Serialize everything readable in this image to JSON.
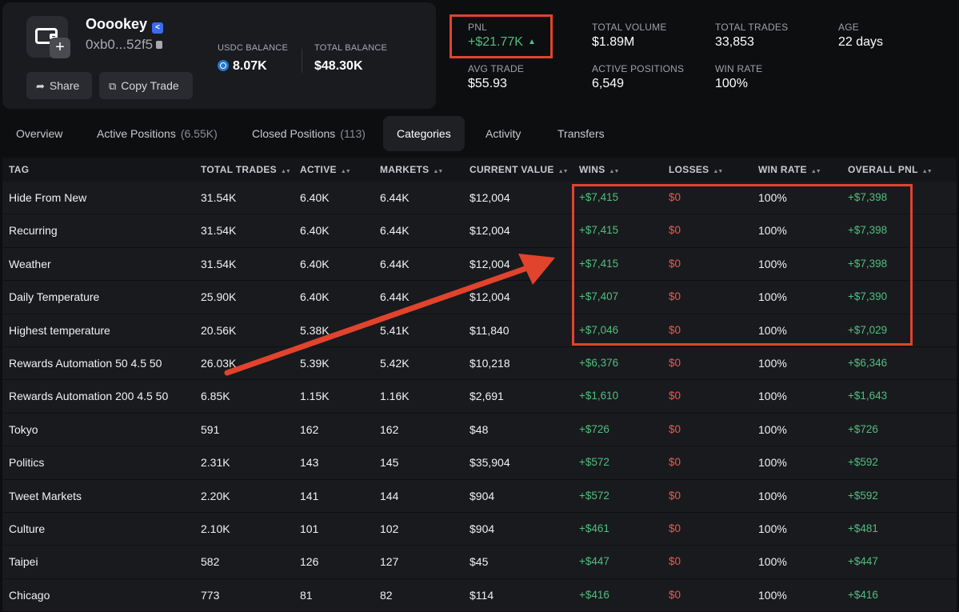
{
  "profile": {
    "name": "Ooookey",
    "address": "0xb0...52f5",
    "usdc_balance_label": "USDC BALANCE",
    "usdc_balance": "8.07K",
    "total_balance_label": "TOTAL BALANCE",
    "total_balance": "$48.30K",
    "share_label": "Share",
    "copy_trade_label": "Copy Trade"
  },
  "stats": {
    "pnl_label": "PNL",
    "pnl_value": "+$21.77K",
    "avg_trade_label": "AVG TRADE",
    "avg_trade_value": "$55.93",
    "total_volume_label": "TOTAL VOLUME",
    "total_volume_value": "$1.89M",
    "active_positions_label": "ACTIVE POSITIONS",
    "active_positions_value": "6,549",
    "total_trades_label": "TOTAL TRADES",
    "total_trades_value": "33,853",
    "win_rate_label": "WIN RATE",
    "win_rate_value": "100%",
    "age_label": "AGE",
    "age_value": "22 days"
  },
  "tabs": [
    {
      "label": "Overview",
      "count": ""
    },
    {
      "label": "Active Positions",
      "count": "(6.55K)"
    },
    {
      "label": "Closed Positions",
      "count": "(113)"
    },
    {
      "label": "Categories",
      "count": ""
    },
    {
      "label": "Activity",
      "count": ""
    },
    {
      "label": "Transfers",
      "count": ""
    }
  ],
  "table": {
    "headers": [
      "TAG",
      "TOTAL TRADES",
      "ACTIVE",
      "MARKETS",
      "CURRENT VALUE",
      "WINS",
      "LOSSES",
      "WIN RATE",
      "OVERALL PNL"
    ],
    "rows": [
      [
        "Hide From New",
        "31.54K",
        "6.40K",
        "6.44K",
        "$12,004",
        "+$7,415",
        "$0",
        "100%",
        "+$7,398"
      ],
      [
        "Recurring",
        "31.54K",
        "6.40K",
        "6.44K",
        "$12,004",
        "+$7,415",
        "$0",
        "100%",
        "+$7,398"
      ],
      [
        "Weather",
        "31.54K",
        "6.40K",
        "6.44K",
        "$12,004",
        "+$7,415",
        "$0",
        "100%",
        "+$7,398"
      ],
      [
        "Daily Temperature",
        "25.90K",
        "6.40K",
        "6.44K",
        "$12,004",
        "+$7,407",
        "$0",
        "100%",
        "+$7,390"
      ],
      [
        "Highest temperature",
        "20.56K",
        "5.38K",
        "5.41K",
        "$11,840",
        "+$7,046",
        "$0",
        "100%",
        "+$7,029"
      ],
      [
        "Rewards Automation 50 4.5 50",
        "26.03K",
        "5.39K",
        "5.42K",
        "$10,218",
        "+$6,376",
        "$0",
        "100%",
        "+$6,346"
      ],
      [
        "Rewards Automation 200 4.5 50",
        "6.85K",
        "1.15K",
        "1.16K",
        "$2,691",
        "+$1,610",
        "$0",
        "100%",
        "+$1,643"
      ],
      [
        "Tokyo",
        "591",
        "162",
        "162",
        "$48",
        "+$726",
        "$0",
        "100%",
        "+$726"
      ],
      [
        "Politics",
        "2.31K",
        "143",
        "145",
        "$35,904",
        "+$572",
        "$0",
        "100%",
        "+$592"
      ],
      [
        "Tweet Markets",
        "2.20K",
        "141",
        "144",
        "$904",
        "+$572",
        "$0",
        "100%",
        "+$592"
      ],
      [
        "Culture",
        "2.10K",
        "101",
        "102",
        "$904",
        "+$461",
        "$0",
        "100%",
        "+$481"
      ],
      [
        "Taipei",
        "582",
        "126",
        "127",
        "$45",
        "+$447",
        "$0",
        "100%",
        "+$447"
      ],
      [
        "Chicago",
        "773",
        "81",
        "82",
        "$114",
        "+$416",
        "$0",
        "100%",
        "+$416"
      ]
    ]
  },
  "colors": {
    "positive": "#4fbf7f",
    "negative": "#e85a4f",
    "annotation": "#e2432d"
  }
}
